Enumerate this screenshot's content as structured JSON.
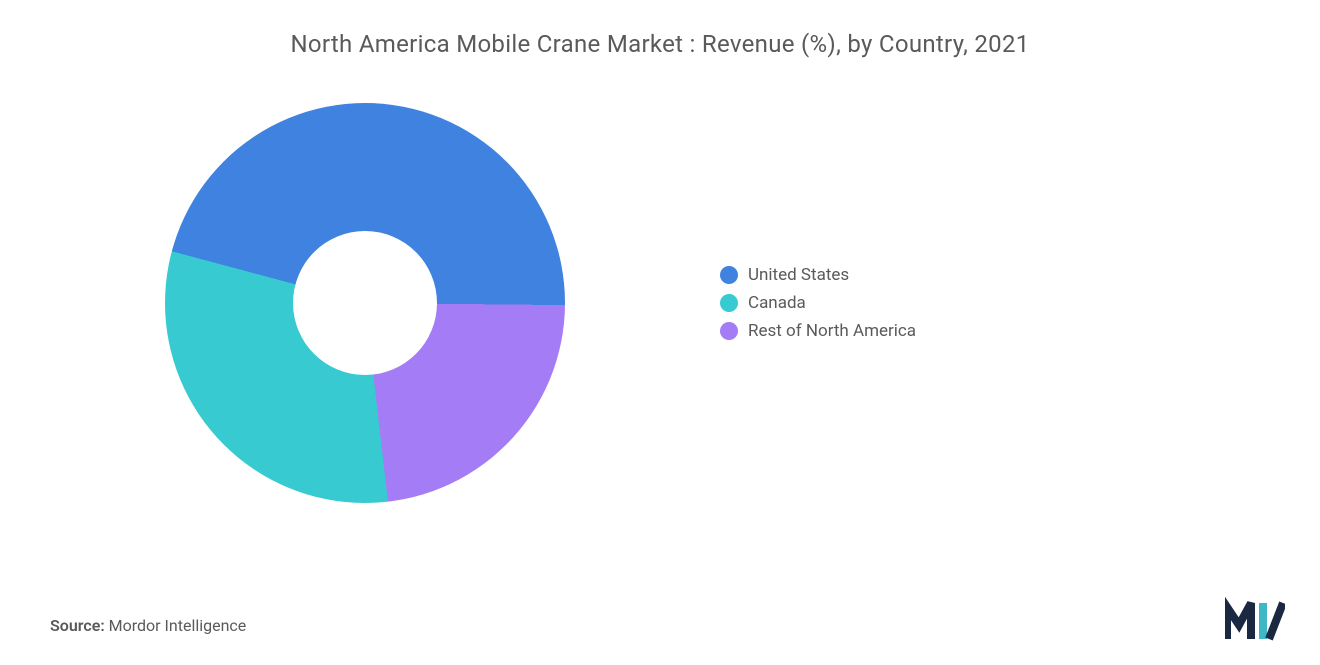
{
  "chart": {
    "type": "donut",
    "title": "North America Mobile Crane Market : Revenue (%), by Country, 2021",
    "title_fontsize": 24,
    "title_color": "#5a5a5a",
    "background_color": "#ffffff",
    "donut_diameter": 400,
    "donut_hole_diameter": 144,
    "donut_hole_color": "#ffffff",
    "series": [
      {
        "label": "United States",
        "value": 46,
        "color": "#4082df"
      },
      {
        "label": "Canada",
        "value": 31,
        "color": "#37cad0"
      },
      {
        "label": "Rest of North America",
        "value": 23,
        "color": "#a47cf5"
      }
    ],
    "start_angle_deg": -75,
    "legend": {
      "fontsize": 17,
      "text_color": "#5a5a5a",
      "dot_size": 18,
      "position": "right"
    }
  },
  "source": {
    "label": "Source:",
    "value": "Mordor Intelligence",
    "fontsize": 16,
    "color": "#5a5a5a"
  },
  "logo": {
    "name": "mordor-intelligence-logo",
    "primary_color": "#1a2841",
    "accent_color": "#3eb8c4"
  }
}
